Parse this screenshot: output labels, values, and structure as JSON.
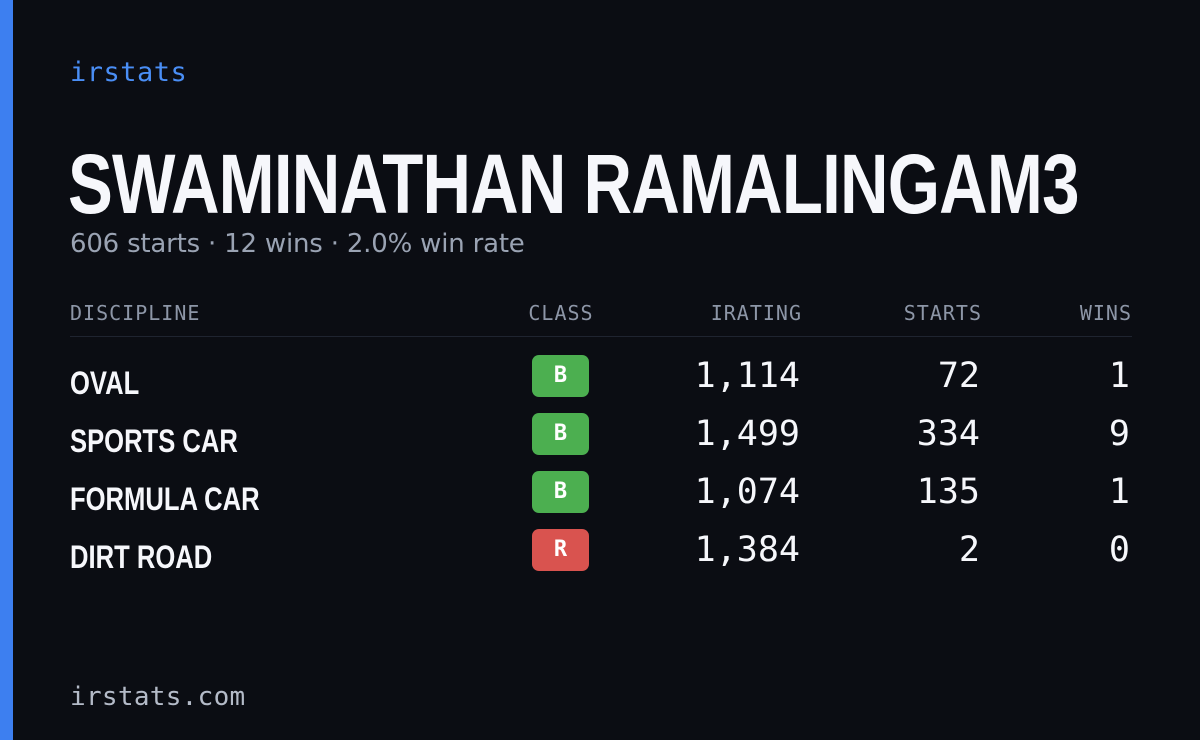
{
  "brand": "irstats",
  "driver": {
    "name": "SWAMINATHAN RAMALINGAM3",
    "summary": "606 starts · 12 wins · 2.0% win rate"
  },
  "table": {
    "headers": {
      "discipline": "DISCIPLINE",
      "class": "CLASS",
      "irating": "IRATING",
      "starts": "STARTS",
      "wins": "WINS"
    },
    "rows": [
      {
        "discipline": "OVAL",
        "class": "B",
        "class_color": "#4caf50",
        "irating": "1,114",
        "starts": "72",
        "wins": "1"
      },
      {
        "discipline": "SPORTS CAR",
        "class": "B",
        "class_color": "#4caf50",
        "irating": "1,499",
        "starts": "334",
        "wins": "9"
      },
      {
        "discipline": "FORMULA CAR",
        "class": "B",
        "class_color": "#4caf50",
        "irating": "1,074",
        "starts": "135",
        "wins": "1"
      },
      {
        "discipline": "DIRT ROAD",
        "class": "R",
        "class_color": "#d9534f",
        "irating": "1,384",
        "starts": "2",
        "wins": "0"
      }
    ]
  },
  "footer": "irstats.com",
  "colors": {
    "background": "#0b0d13",
    "accent": "#3d7ff0",
    "muted_text": "#9aa3b3"
  }
}
